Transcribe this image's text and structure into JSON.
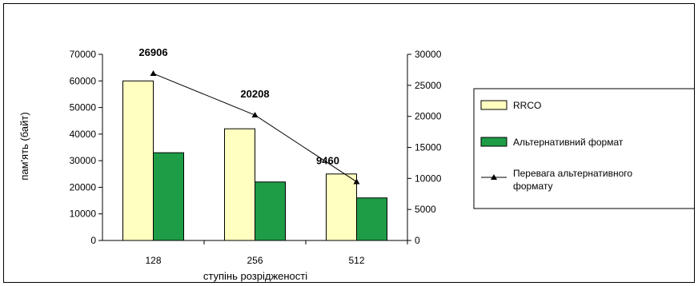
{
  "chart_data": {
    "type": "bar",
    "categories": [
      "128",
      "256",
      "512"
    ],
    "xlabel": "ступінь розрідженості",
    "ylabel": "пам'ять (байт)",
    "ylim": [
      0,
      70000
    ],
    "ytick_step": 10000,
    "y2lim": [
      0,
      30000
    ],
    "y2tick_step": 5000,
    "legend_position": "right",
    "series": [
      {
        "name": "RRCO",
        "type": "bar",
        "axis": "left",
        "color": "#ffffc0",
        "values": [
          60000,
          42000,
          25000
        ]
      },
      {
        "name": "Альтернативний формат",
        "type": "bar",
        "axis": "left",
        "color": "#1e9c46",
        "values": [
          33000,
          22000,
          16000
        ]
      },
      {
        "name": "Перевага альтернативного формату",
        "type": "line",
        "axis": "right",
        "color": "#000000",
        "values": [
          26906,
          20208,
          9460
        ],
        "data_labels": [
          "26906",
          "20208",
          "9460"
        ]
      }
    ]
  }
}
